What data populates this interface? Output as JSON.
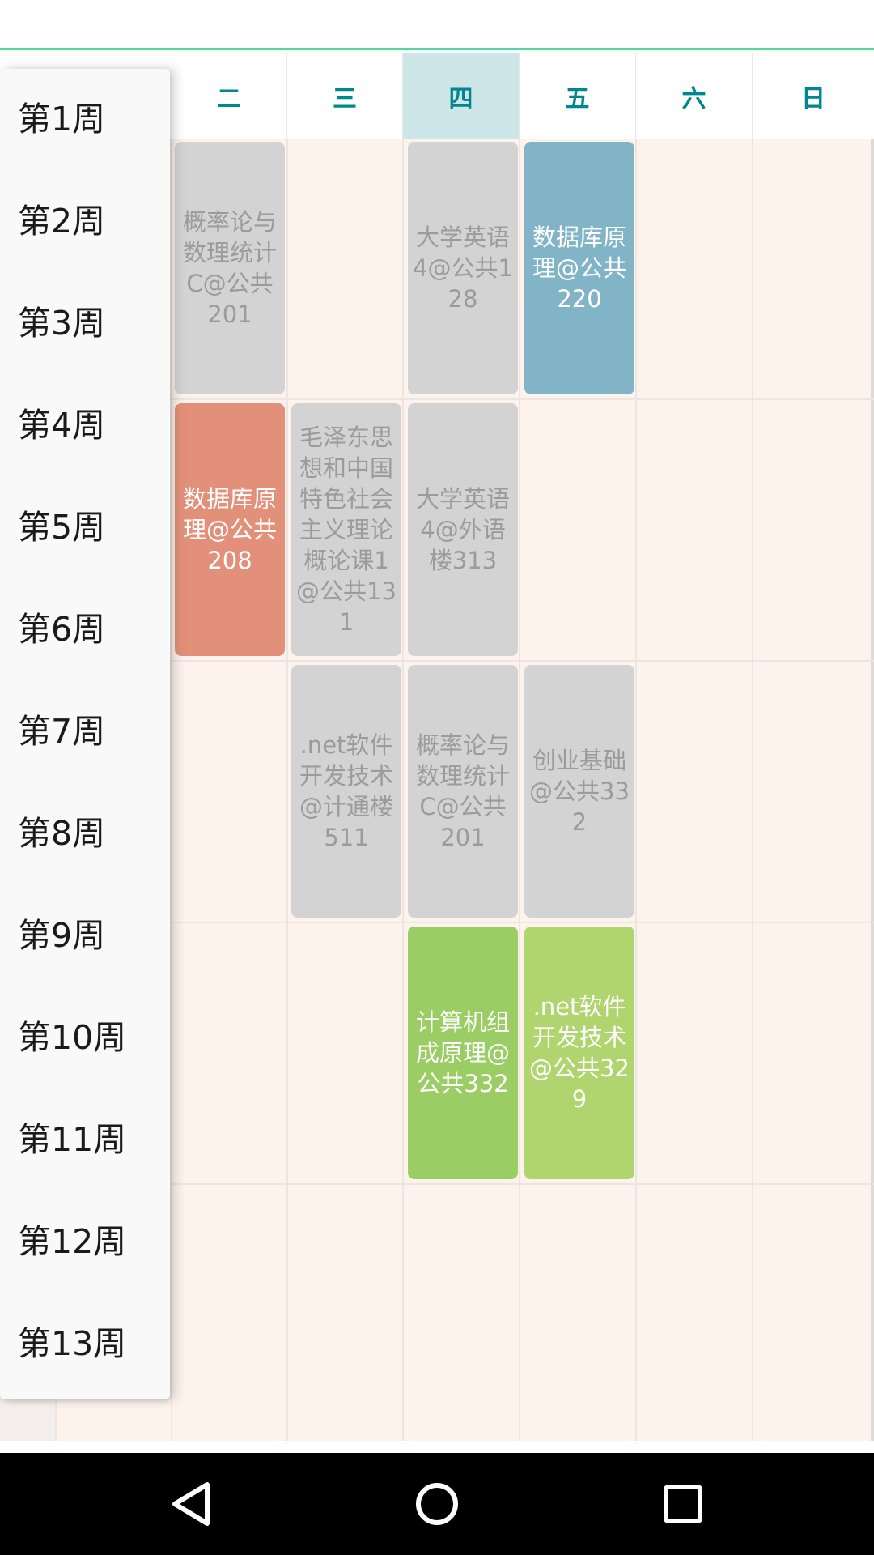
{
  "days": [
    "二",
    "三",
    "四",
    "五",
    "六",
    "日"
  ],
  "current_day": "四",
  "weeks": [
    "第1周",
    "第2周",
    "第3周",
    "第4周",
    "第5周",
    "第6周",
    "第7周",
    "第8周",
    "第9周",
    "第10周",
    "第11周",
    "第12周",
    "第13周"
  ],
  "courses": [
    {
      "text": "概率论与数理统计C@公共201",
      "style": "gray"
    },
    {
      "text": "大学英语4@公共128",
      "style": "gray"
    },
    {
      "text": "数据库原理@公共220",
      "style": "blue"
    },
    {
      "text": "数据库原理@公共208",
      "style": "orange"
    },
    {
      "text": "毛泽东思想和中国特色社会主义理论概论课1@公共131",
      "style": "gray"
    },
    {
      "text": "大学英语4@外语楼313",
      "style": "gray"
    },
    {
      "text": ".net软件开发技术@计通楼511",
      "style": "gray"
    },
    {
      "text": "概率论与数理统计C@公共201",
      "style": "gray"
    },
    {
      "text": "创业基础@公共332",
      "style": "gray"
    },
    {
      "text": "计算机组成原理@公共332",
      "style": "green"
    },
    {
      "text": ".net软件开发技术@公共329",
      "style": "lime"
    }
  ],
  "nav": {
    "back_icon": "back-triangle-icon",
    "home_icon": "home-circle-icon",
    "recents_icon": "recents-square-icon"
  }
}
